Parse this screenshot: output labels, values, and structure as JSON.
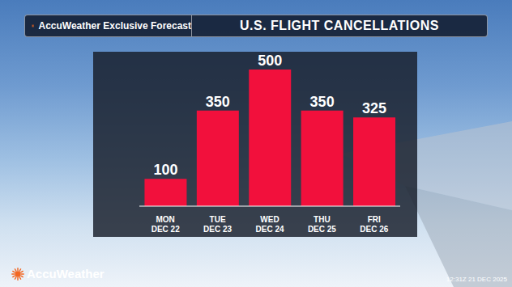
{
  "chart_data": {
    "type": "bar",
    "title": "U.S. FLIGHT CANCELLATIONS",
    "subtitle": "AccuWeather Exclusive Forecast",
    "categories": [
      "MON DEC 22",
      "TUE DEC 23",
      "WED DEC 24",
      "THU DEC 25",
      "FRI DEC 26"
    ],
    "values": [
      100,
      350,
      500,
      350,
      325
    ],
    "color": "#f2103c",
    "ylim": [
      0,
      565
    ],
    "data_labels": true,
    "tick_labels": "x",
    "annotations": [
      "AccuWeather",
      "12:31Z 21 DEC 2025"
    ]
  }
}
